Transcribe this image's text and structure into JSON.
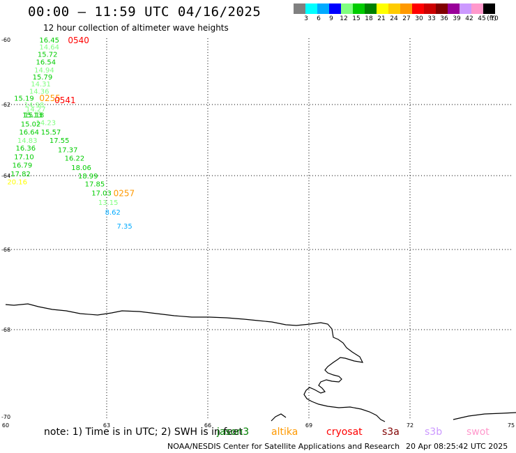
{
  "header": {
    "title": "00:00 – 11:59 UTC 04/16/2025",
    "subtitle": "12 hour collection of altimeter wave heights"
  },
  "legend": {
    "colors": [
      "#808080",
      "#00ffff",
      "#00aaff",
      "#0000ff",
      "#80ff80",
      "#00cc00",
      "#008000",
      "#ffff00",
      "#ffcc00",
      "#ff9900",
      "#ff0000",
      "#cc0000",
      "#800000",
      "#990099",
      "#cc99ff",
      "#ff99cc",
      "#000000"
    ],
    "labels": [
      "3",
      "6",
      "9",
      "12",
      "15",
      "18",
      "21",
      "24",
      "27",
      "30",
      "33",
      "36",
      "39",
      "42",
      "45",
      "70",
      "(ft)"
    ]
  },
  "axes": {
    "lat_ticks": [
      "-60",
      "-62",
      "-64",
      "-66",
      "-68",
      "-70"
    ],
    "lon_ticks": [
      "60",
      "63",
      "66",
      "69",
      "72",
      "75"
    ]
  },
  "observations": [
    {
      "text": "16.45",
      "lon": 61.0,
      "lat": -60.0,
      "color": "#00cc00"
    },
    {
      "text": "14.64",
      "lon": 61.0,
      "lat": -60.22,
      "color": "#80ff80"
    },
    {
      "text": "15.72",
      "lon": 60.95,
      "lat": -60.44,
      "color": "#00cc00"
    },
    {
      "text": "16.54",
      "lon": 60.9,
      "lat": -60.68,
      "color": "#00cc00"
    },
    {
      "text": "14.94",
      "lon": 60.85,
      "lat": -60.92,
      "color": "#80ff80"
    },
    {
      "text": "15.79",
      "lon": 60.8,
      "lat": -61.14,
      "color": "#00cc00"
    },
    {
      "text": "14.31",
      "lon": 60.75,
      "lat": -61.36,
      "color": "#80ff80"
    },
    {
      "text": "14.36",
      "lon": 60.7,
      "lat": -61.58,
      "color": "#80ff80"
    },
    {
      "text": "15.19",
      "lon": 60.25,
      "lat": -61.8,
      "color": "#00cc00"
    },
    {
      "text": "14.98",
      "lon": 60.55,
      "lat": -62.0,
      "color": "#80ff80"
    },
    {
      "text": "14.27",
      "lon": 60.6,
      "lat": -62.12,
      "color": "#80ff80"
    },
    {
      "text": "15.13",
      "lon": 60.5,
      "lat": -62.28,
      "color": "#00cc00"
    },
    {
      "text": "15.18",
      "lon": 60.55,
      "lat": -62.28,
      "color": "#00cc00"
    },
    {
      "text": "14.23",
      "lon": 60.9,
      "lat": -62.5,
      "color": "#80ff80"
    },
    {
      "text": "15.02",
      "lon": 60.45,
      "lat": -62.54,
      "color": "#00cc00"
    },
    {
      "text": "16.64",
      "lon": 60.4,
      "lat": -62.76,
      "color": "#00cc00"
    },
    {
      "text": "15.57",
      "lon": 61.05,
      "lat": -62.76,
      "color": "#00cc00"
    },
    {
      "text": "14.83",
      "lon": 60.35,
      "lat": -63.0,
      "color": "#80ff80"
    },
    {
      "text": "17.55",
      "lon": 61.3,
      "lat": -63.0,
      "color": "#00cc00"
    },
    {
      "text": "16.36",
      "lon": 60.3,
      "lat": -63.22,
      "color": "#00cc00"
    },
    {
      "text": "17.37",
      "lon": 61.55,
      "lat": -63.26,
      "color": "#00cc00"
    },
    {
      "text": "17.10",
      "lon": 60.25,
      "lat": -63.46,
      "color": "#00cc00"
    },
    {
      "text": "16.22",
      "lon": 61.75,
      "lat": -63.5,
      "color": "#00cc00"
    },
    {
      "text": "16.79",
      "lon": 60.2,
      "lat": -63.7,
      "color": "#00cc00"
    },
    {
      "text": "18.06",
      "lon": 61.95,
      "lat": -63.76,
      "color": "#00cc00"
    },
    {
      "text": "17.82",
      "lon": 60.15,
      "lat": -63.94,
      "color": "#00cc00"
    },
    {
      "text": "18.99",
      "lon": 62.15,
      "lat": -64.0,
      "color": "#00cc00"
    },
    {
      "text": "20.16",
      "lon": 60.05,
      "lat": -64.16,
      "color": "#ffff00"
    },
    {
      "text": "17.85",
      "lon": 62.35,
      "lat": -64.22,
      "color": "#00cc00"
    },
    {
      "text": "17.03",
      "lon": 62.55,
      "lat": -64.46,
      "color": "#00cc00"
    },
    {
      "text": "13.15",
      "lon": 62.75,
      "lat": -64.72,
      "color": "#80ff80"
    },
    {
      "text": "8.62",
      "lon": 62.95,
      "lat": -64.98,
      "color": "#00aaff"
    },
    {
      "text": "7.35",
      "lon": 63.3,
      "lat": -65.36,
      "color": "#00aaff"
    }
  ],
  "time_labels": [
    {
      "text": "0540",
      "lon": 61.85,
      "lat": -60.0,
      "color": "#ff0000"
    },
    {
      "text": "0255",
      "lon": 61.0,
      "lat": -61.78,
      "color": "#ff9900"
    },
    {
      "text": "0541",
      "lon": 61.45,
      "lat": -61.85,
      "color": "#ff0000"
    },
    {
      "text": "0257",
      "lon": 63.2,
      "lat": -64.46,
      "color": "#ff9900"
    }
  ],
  "note": {
    "prefix": "note:  1) Time is in UTC;  2) SWH is in feet",
    "satellites": [
      {
        "name": "jason3",
        "color": "#008000"
      },
      {
        "name": "altika",
        "color": "#ff9900"
      },
      {
        "name": "cryosat",
        "color": "#ff0000"
      },
      {
        "name": "s3a",
        "color": "#800000"
      },
      {
        "name": "s3b",
        "color": "#cc99ff"
      },
      {
        "name": "swot",
        "color": "#ff99cc"
      }
    ]
  },
  "footer": {
    "credit": "NOAA/NESDIS Center for Satellite Applications and Research",
    "generated": "20 Apr 08:25:42 UTC 2025"
  }
}
